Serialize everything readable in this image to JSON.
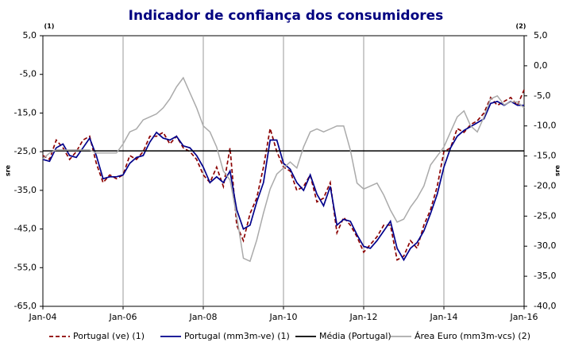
{
  "chart_data": {
    "type": "line",
    "title": "Indicador de confiança dos consumidores",
    "y_label": "sre",
    "y2_label": "sre",
    "y_note": "(1)",
    "y2_note": "(2)",
    "x": [
      "2004-01",
      "2004-03",
      "2004-05",
      "2004-07",
      "2004-09",
      "2004-11",
      "2005-01",
      "2005-03",
      "2005-05",
      "2005-07",
      "2005-09",
      "2005-11",
      "2006-01",
      "2006-03",
      "2006-05",
      "2006-07",
      "2006-09",
      "2006-11",
      "2007-01",
      "2007-03",
      "2007-05",
      "2007-07",
      "2007-09",
      "2007-11",
      "2008-01",
      "2008-03",
      "2008-05",
      "2008-07",
      "2008-09",
      "2008-11",
      "2009-01",
      "2009-03",
      "2009-05",
      "2009-07",
      "2009-09",
      "2009-11",
      "2010-01",
      "2010-03",
      "2010-05",
      "2010-07",
      "2010-09",
      "2010-11",
      "2011-01",
      "2011-03",
      "2011-05",
      "2011-07",
      "2011-09",
      "2011-11",
      "2012-01",
      "2012-03",
      "2012-05",
      "2012-07",
      "2012-09",
      "2012-11",
      "2013-01",
      "2013-03",
      "2013-05",
      "2013-07",
      "2013-09",
      "2013-11",
      "2014-01",
      "2014-03",
      "2014-05",
      "2014-07",
      "2014-09",
      "2014-11",
      "2015-01",
      "2015-03",
      "2015-05",
      "2015-07",
      "2015-09",
      "2015-11",
      "2016-01"
    ],
    "xlim": [
      "2004-01",
      "2016-01"
    ],
    "xticks": [
      {
        "value": "2004-01",
        "label": "Jan-04"
      },
      {
        "value": "2006-01",
        "label": "Jan-06"
      },
      {
        "value": "2008-01",
        "label": "Jan-08"
      },
      {
        "value": "2010-01",
        "label": "Jan-10"
      },
      {
        "value": "2012-01",
        "label": "Jan-12"
      },
      {
        "value": "2014-01",
        "label": "Jan-14"
      },
      {
        "value": "2016-01",
        "label": "Jan-16"
      }
    ],
    "ylim": [
      -65,
      5
    ],
    "yticks": [
      {
        "value": 5,
        "label": "5,0"
      },
      {
        "value": -5,
        "label": "-5,0"
      },
      {
        "value": -15,
        "label": "-15,0"
      },
      {
        "value": -25,
        "label": "-25,0"
      },
      {
        "value": -35,
        "label": "-35,0"
      },
      {
        "value": -45,
        "label": "-45,0"
      },
      {
        "value": -55,
        "label": "-55,0"
      },
      {
        "value": -65,
        "label": "-65,0"
      }
    ],
    "y2lim": [
      -40,
      5
    ],
    "y2ticks": [
      {
        "value": 5,
        "label": "5,0"
      },
      {
        "value": 0,
        "label": "0,0"
      },
      {
        "value": -5,
        "label": "-5,0"
      },
      {
        "value": -10,
        "label": "-10,0"
      },
      {
        "value": -15,
        "label": "-15,0"
      },
      {
        "value": -20,
        "label": "-20,0"
      },
      {
        "value": -25,
        "label": "-25,0"
      },
      {
        "value": -30,
        "label": "-30,0"
      },
      {
        "value": -35,
        "label": "-35,0"
      },
      {
        "value": -40,
        "label": "-40,0"
      }
    ],
    "grid": "x",
    "series": [
      {
        "name": "Portugal (ve) (1)",
        "color": "#8b0000",
        "dashed": true,
        "values": [
          -26,
          -27,
          -22,
          -24,
          -27,
          -25,
          -22,
          -21,
          -28,
          -33,
          -31,
          -32,
          -31,
          -26,
          -27,
          -25,
          -21,
          -21,
          -20,
          -23,
          -21,
          -24,
          -25,
          -27,
          -31,
          -33,
          -29,
          -34,
          -24,
          -44,
          -48,
          -41,
          -37,
          -29,
          -19,
          -25,
          -29,
          -30,
          -35,
          -34,
          -31,
          -38,
          -37,
          -33,
          -46,
          -42,
          -44,
          -47,
          -51,
          -49,
          -47,
          -44,
          -44,
          -53,
          -52,
          -48,
          -50,
          -44,
          -40,
          -34,
          -25,
          -24,
          -19,
          -20,
          -18,
          -17,
          -15,
          -11,
          -13,
          -12,
          -11,
          -13,
          -9
        ]
      },
      {
        "name": "Portugal (mm3m-ve) (1)",
        "color": "#00008b",
        "values": [
          -27,
          -27.5,
          -24,
          -23,
          -26,
          -26.5,
          -24,
          -21.5,
          -26,
          -32,
          -31.5,
          -31.5,
          -31,
          -28,
          -26.5,
          -26,
          -22.5,
          -20,
          -21.5,
          -22,
          -21,
          -23.5,
          -24,
          -26,
          -29,
          -33,
          -31.5,
          -33,
          -30,
          -40,
          -45,
          -44,
          -38,
          -33,
          -22,
          -22,
          -28,
          -29.5,
          -33,
          -35,
          -31,
          -36,
          -39,
          -34,
          -44,
          -42.5,
          -43,
          -46.5,
          -49.5,
          -50,
          -48,
          -45.5,
          -43,
          -50,
          -53,
          -50,
          -48.5,
          -45.5,
          -41,
          -36,
          -29,
          -24,
          -21,
          -19.5,
          -18.5,
          -17.5,
          -16.5,
          -12.5,
          -12,
          -13,
          -12,
          -13,
          -13
        ]
      },
      {
        "name": "Média (Portugal)",
        "color": "#000000",
        "value": -24.8
      },
      {
        "name": "Área Euro (mm3m-vcs) (2)",
        "color": "#aaaaaa",
        "axis": "y2",
        "values": [
          -15.5,
          -14.5,
          -14,
          -14,
          -14,
          -14,
          -14,
          -14,
          -14.5,
          -14.5,
          -14.5,
          -14.5,
          -13,
          -11,
          -10.5,
          -9,
          -8.5,
          -8,
          -7,
          -5.5,
          -3.5,
          -2,
          -4.5,
          -7,
          -10,
          -11,
          -13.5,
          -17.5,
          -19,
          -25,
          -32,
          -32.5,
          -29,
          -24.5,
          -20.5,
          -18,
          -17,
          -16,
          -17,
          -13.5,
          -11,
          -10.5,
          -11,
          -10.5,
          -10,
          -10,
          -14,
          -19.5,
          -20.5,
          -20,
          -19.5,
          -21.5,
          -24,
          -26,
          -25.5,
          -23.5,
          -22,
          -20,
          -16.5,
          -15,
          -13.5,
          -11,
          -8.5,
          -7.5,
          -10,
          -11,
          -8.5,
          -5.5,
          -5,
          -6.5,
          -6,
          -6,
          -7
        ]
      }
    ]
  }
}
